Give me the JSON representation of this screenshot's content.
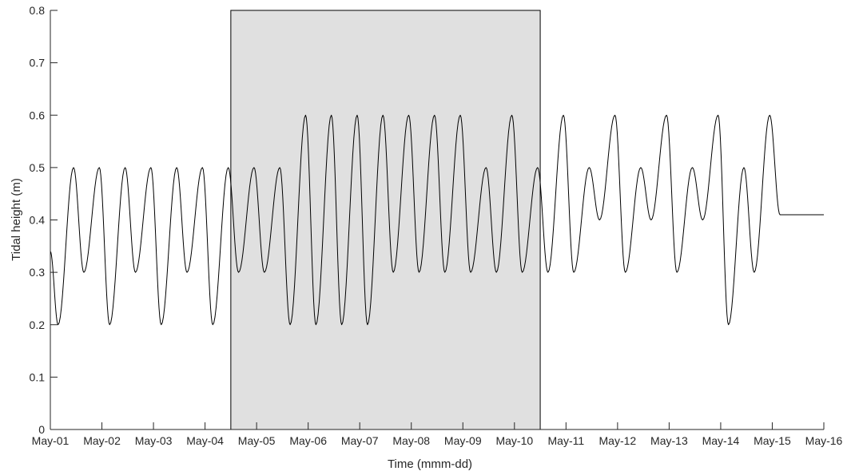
{
  "chart_data": {
    "type": "line",
    "title": "",
    "xlabel": "Time (mmm-dd)",
    "ylabel": "Tidal height (m)",
    "xlim": [
      "May-01",
      "May-16"
    ],
    "ylim": [
      0,
      0.8
    ],
    "x_ticks": [
      "May-01",
      "May-02",
      "May-03",
      "May-04",
      "May-05",
      "May-06",
      "May-07",
      "May-08",
      "May-09",
      "May-10",
      "May-11",
      "May-12",
      "May-13",
      "May-14",
      "May-15",
      "May-16"
    ],
    "y_ticks": [
      "0",
      "0.1",
      "0.2",
      "0.3",
      "0.4",
      "0.5",
      "0.6",
      "0.7",
      "0.8"
    ],
    "grid": false,
    "shaded_region": {
      "x_start": "May-04 12:00",
      "x_end": "May-10 12:00",
      "y_top": 0.8,
      "fill": "#e0e0e0",
      "stroke": "#000000"
    },
    "series": [
      {
        "color": "#000000",
        "x_unit": "days since May-01 00:00",
        "x": [
          0.0,
          0.15,
          0.45,
          0.65,
          0.95,
          1.15,
          1.45,
          1.65,
          1.95,
          2.15,
          2.45,
          2.65,
          2.95,
          3.15,
          3.45,
          3.65,
          3.95,
          4.15,
          4.45,
          4.65,
          4.95,
          5.15,
          5.45,
          5.65,
          5.95,
          6.15,
          6.45,
          6.65,
          6.95,
          7.15,
          7.45,
          7.65,
          7.95,
          8.15,
          8.45,
          8.65,
          8.95,
          9.15,
          9.45,
          9.65,
          9.95,
          10.15,
          10.45,
          10.65,
          10.95,
          11.15,
          11.45,
          11.65,
          11.95,
          12.15,
          12.45,
          12.65,
          12.95,
          13.15,
          13.45,
          13.65,
          13.95,
          14.15,
          14.45,
          14.65,
          14.95,
          15.0
        ],
        "y": [
          0.34,
          0.2,
          0.5,
          0.3,
          0.5,
          0.2,
          0.5,
          0.3,
          0.5,
          0.2,
          0.5,
          0.3,
          0.5,
          0.2,
          0.5,
          0.3,
          0.5,
          0.3,
          0.5,
          0.2,
          0.6,
          0.2,
          0.6,
          0.2,
          0.6,
          0.2,
          0.6,
          0.3,
          0.6,
          0.3,
          0.6,
          0.3,
          0.6,
          0.3,
          0.5,
          0.3,
          0.6,
          0.3,
          0.5,
          0.3,
          0.6,
          0.3,
          0.5,
          0.4,
          0.6,
          0.3,
          0.5,
          0.4,
          0.6,
          0.3,
          0.5,
          0.4,
          0.6,
          0.2,
          0.5,
          0.3,
          0.6,
          0.41,
          0.41,
          0.41,
          0.41,
          0.41
        ]
      }
    ]
  }
}
